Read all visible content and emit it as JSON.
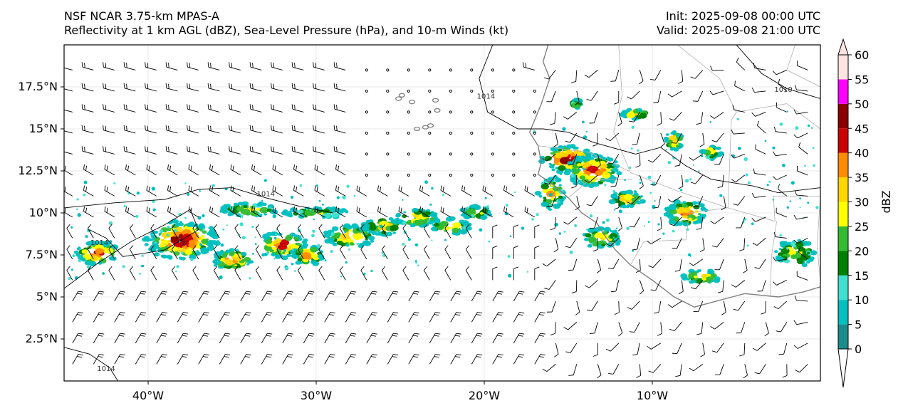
{
  "header": {
    "model_title": "NSF NCAR 3.75-km MPAS-A",
    "fields_title": "Reflectivity at 1 km AGL (dBZ), Sea-Level Pressure (hPa), and 10-m Winds (kt)",
    "init": "Init: 2025-09-08 00:00 UTC",
    "valid": "Valid: 2025-09-08 21:00 UTC"
  },
  "map": {
    "lon_range": [
      -45,
      0
    ],
    "lat_range": [
      0,
      20
    ],
    "lat_ticks": [
      {
        "value": 2.5,
        "label": "2.5°N"
      },
      {
        "value": 5,
        "label": "5°N"
      },
      {
        "value": 7.5,
        "label": "7.5°N"
      },
      {
        "value": 10,
        "label": "10°N"
      },
      {
        "value": 12.5,
        "label": "12.5°N"
      },
      {
        "value": 15,
        "label": "15°N"
      },
      {
        "value": 17.5,
        "label": "17.5°N"
      }
    ],
    "lon_ticks": [
      {
        "value": -40,
        "label": "40°W"
      },
      {
        "value": -30,
        "label": "30°W"
      },
      {
        "value": -20,
        "label": "20°W"
      },
      {
        "value": -10,
        "label": "10°W"
      }
    ],
    "isobar_labels": [
      "1014",
      "1014",
      "1014",
      "1014",
      "1010"
    ]
  },
  "colorbar": {
    "label": "dBZ",
    "levels": [
      0,
      5,
      10,
      15,
      20,
      25,
      30,
      35,
      40,
      45,
      50,
      55,
      60
    ],
    "tick_labels": [
      "0",
      "5",
      "10",
      "15",
      "20",
      "25",
      "30",
      "35",
      "40",
      "45",
      "50",
      "55",
      "60"
    ],
    "colors": [
      "#ffffff",
      "#1a8c8c",
      "#00bfbf",
      "#40e0d0",
      "#008000",
      "#33bb33",
      "#ffff00",
      "#ffd700",
      "#ff8c00",
      "#cc0000",
      "#8b0000",
      "#ff00ff",
      "#ffe4e1"
    ]
  },
  "colors": {
    "coastline": "#808080",
    "isobar": "#000000",
    "barb": "#000000"
  }
}
